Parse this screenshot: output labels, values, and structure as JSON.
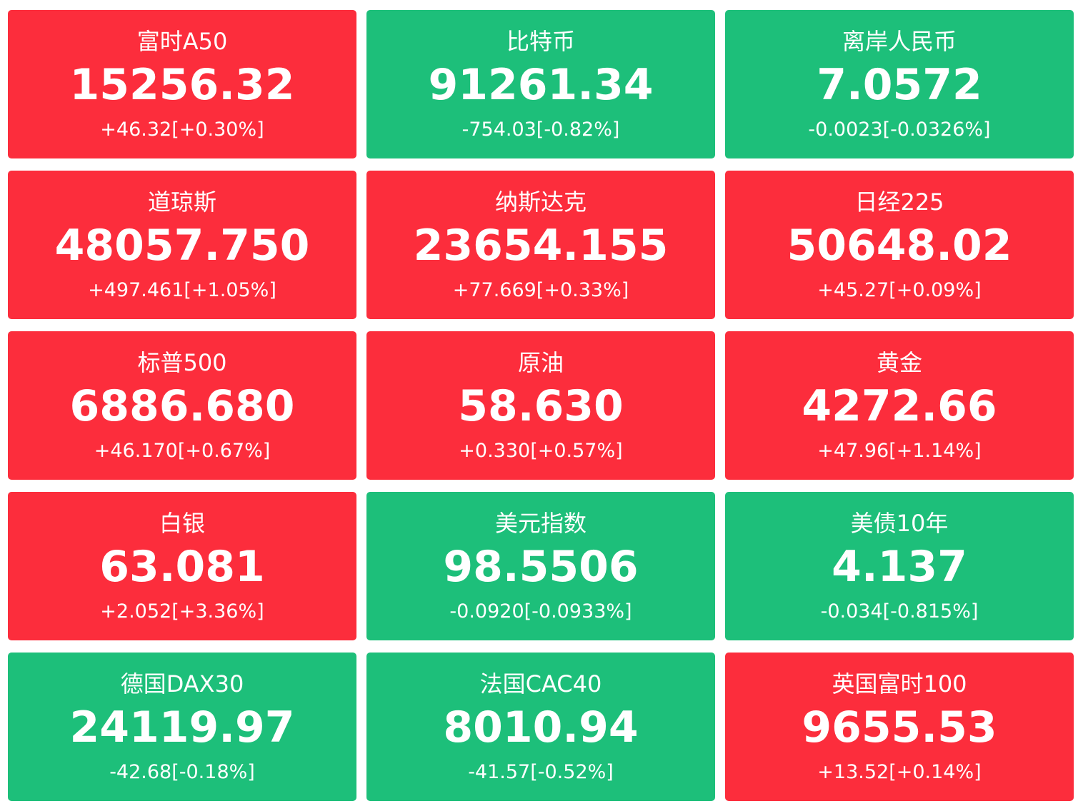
{
  "tiles": [
    {
      "name": "富时A50",
      "price": "15256.32",
      "change": "+46.32[+0.30%]",
      "color": "#fc2d3c"
    },
    {
      "name": "比特币",
      "price": "91261.34",
      "change": "-754.03[-0.82%]",
      "color": "#1dbf7a"
    },
    {
      "name": "离岸人民币",
      "price": "7.0572",
      "change": "-0.0023[-0.0326%]",
      "color": "#1dbf7a"
    },
    {
      "name": "道琼斯",
      "price": "48057.750",
      "change": "+497.461[+1.05%]",
      "color": "#fc2d3c"
    },
    {
      "name": "纳斯达克",
      "price": "23654.155",
      "change": "+77.669[+0.33%]",
      "color": "#fc2d3c"
    },
    {
      "name": "日经225",
      "price": "50648.02",
      "change": "+45.27[+0.09%]",
      "color": "#fc2d3c"
    },
    {
      "name": "标普500",
      "price": "6886.680",
      "change": "+46.170[+0.67%]",
      "color": "#fc2d3c"
    },
    {
      "name": "原油",
      "price": "58.630",
      "change": "+0.330[+0.57%]",
      "color": "#fc2d3c"
    },
    {
      "name": "黄金",
      "price": "4272.66",
      "change": "+47.96[+1.14%]",
      "color": "#fc2d3c"
    },
    {
      "name": "白银",
      "price": "63.081",
      "change": "+2.052[+3.36%]",
      "color": "#fc2d3c"
    },
    {
      "name": "美元指数",
      "price": "98.5506",
      "change": "-0.0920[-0.0933%]",
      "color": "#1dbf7a"
    },
    {
      "name": "美债10年",
      "price": "4.137",
      "change": "-0.034[-0.815%]",
      "color": "#1dbf7a"
    },
    {
      "name": "德国DAX30",
      "price": "24119.97",
      "change": "-42.68[-0.18%]",
      "color": "#1dbf7a"
    },
    {
      "name": "法国CAC40",
      "price": "8010.94",
      "change": "-41.57[-0.52%]",
      "color": "#1dbf7a"
    },
    {
      "name": "英国富时100",
      "price": "9655.53",
      "change": "+13.52[+0.14%]",
      "color": "#fc2d3c"
    }
  ]
}
